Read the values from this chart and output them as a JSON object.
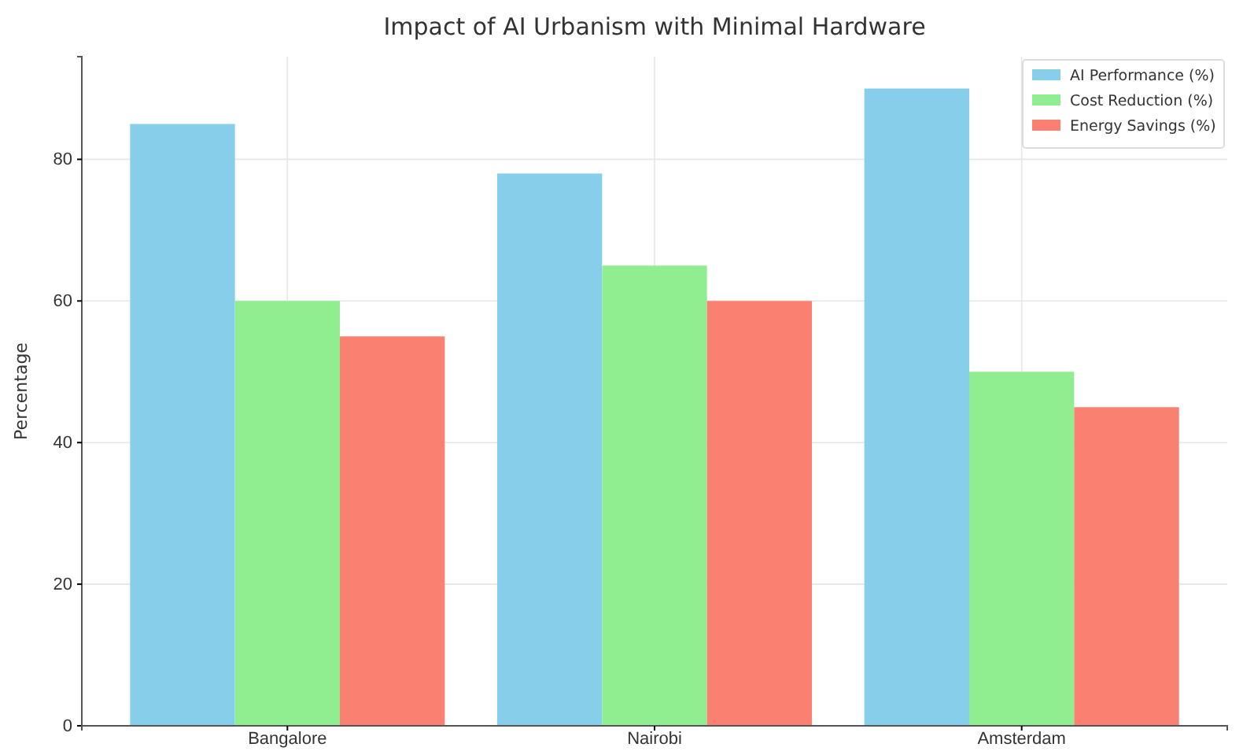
{
  "chart_data": {
    "type": "bar",
    "title": "Impact of AI Urbanism with Minimal Hardware",
    "ylabel": "Percentage",
    "categories": [
      "Bangalore",
      "Nairobi",
      "Amsterdam"
    ],
    "series": [
      {
        "name": "AI Performance (%)",
        "color": "#87ceeb",
        "values": [
          85,
          78,
          90
        ]
      },
      {
        "name": "Cost Reduction (%)",
        "color": "#90ee90",
        "values": [
          60,
          65,
          50
        ]
      },
      {
        "name": "Energy Savings (%)",
        "color": "#fa8072",
        "values": [
          55,
          60,
          45
        ]
      }
    ],
    "ylim": [
      0,
      94.5
    ],
    "yticks": [
      0,
      20,
      40,
      60,
      80
    ],
    "grid": true,
    "legend": "top right"
  }
}
